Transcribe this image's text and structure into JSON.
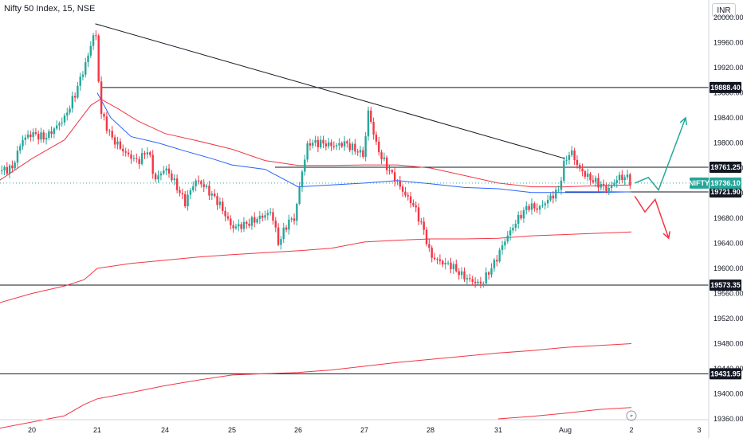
{
  "header": {
    "title": "Nifty 50 Index, 15, NSE",
    "currency": "INR"
  },
  "chart_data": {
    "type": "candlestick",
    "symbol": "NIFTY",
    "y_ticks": [
      "20000.00",
      "19960.00",
      "19920.00",
      "19880.00",
      "19840.00",
      "19800.00",
      "19760.00",
      "19720.00",
      "19680.00",
      "19640.00",
      "19600.00",
      "19560.00",
      "19520.00",
      "19480.00",
      "19440.00",
      "19400.00",
      "19360.00"
    ],
    "y_tick_values": [
      20000,
      19960,
      19920,
      19880,
      19840,
      19800,
      19760,
      19720,
      19680,
      19640,
      19600,
      19560,
      19520,
      19480,
      19440,
      19400,
      19360
    ],
    "ylim": [
      19355,
      20030
    ],
    "x_ticks": [
      {
        "label": "20",
        "day": 0
      },
      {
        "label": "21",
        "day": 1
      },
      {
        "label": "24",
        "day": 2
      },
      {
        "label": "25",
        "day": 3
      },
      {
        "label": "26",
        "day": 4
      },
      {
        "label": "27",
        "day": 5
      },
      {
        "label": "28",
        "day": 6
      },
      {
        "label": "31",
        "day": 7
      },
      {
        "label": "Aug",
        "day": 8
      },
      {
        "label": "2",
        "day": 9
      },
      {
        "label": "3",
        "day": 10
      }
    ],
    "current_price": {
      "symbol": "NIFTY",
      "value": 19736.1,
      "label": "19736.10",
      "color": "#26a69a"
    },
    "horizontal_levels": [
      {
        "value": 19888.4,
        "label": "19888.40",
        "start_day": 1.05
      },
      {
        "value": 19761.25,
        "label": "19761.25",
        "start_day": 3.65
      },
      {
        "value": 19721.9,
        "label": "19721.90",
        "start_day": 8.0
      },
      {
        "value": 19573.35,
        "label": "19573.35",
        "start_day": -0.5
      },
      {
        "value": 19431.95,
        "label": "19431.95",
        "start_day": -0.5
      }
    ],
    "trendline": {
      "from": {
        "day": 0.97,
        "value": 19990
      },
      "to": {
        "day": 8.0,
        "value": 19775
      }
    },
    "candle_waypoints": [
      [
        -0.5,
        19755
      ],
      [
        -0.3,
        19760
      ],
      [
        -0.15,
        19805
      ],
      [
        0.0,
        19815
      ],
      [
        0.2,
        19808
      ],
      [
        0.3,
        19818
      ],
      [
        0.5,
        19840
      ],
      [
        0.65,
        19875
      ],
      [
        0.85,
        19935
      ],
      [
        0.97,
        19985
      ],
      [
        1.05,
        19850
      ],
      [
        1.2,
        19810
      ],
      [
        1.4,
        19785
      ],
      [
        1.6,
        19770
      ],
      [
        1.75,
        19790
      ],
      [
        1.85,
        19740
      ],
      [
        2.0,
        19760
      ],
      [
        2.1,
        19745
      ],
      [
        2.3,
        19705
      ],
      [
        2.45,
        19740
      ],
      [
        2.55,
        19735
      ],
      [
        2.8,
        19705
      ],
      [
        3.0,
        19665
      ],
      [
        3.2,
        19670
      ],
      [
        3.4,
        19680
      ],
      [
        3.6,
        19690
      ],
      [
        3.7,
        19640
      ],
      [
        3.85,
        19675
      ],
      [
        3.95,
        19680
      ],
      [
        4.05,
        19750
      ],
      [
        4.15,
        19800
      ],
      [
        4.35,
        19800
      ],
      [
        4.55,
        19795
      ],
      [
        4.7,
        19800
      ],
      [
        4.85,
        19790
      ],
      [
        5.0,
        19780
      ],
      [
        5.05,
        19855
      ],
      [
        5.2,
        19790
      ],
      [
        5.35,
        19760
      ],
      [
        5.45,
        19745
      ],
      [
        5.6,
        19720
      ],
      [
        5.75,
        19700
      ],
      [
        5.9,
        19660
      ],
      [
        6.0,
        19620
      ],
      [
        6.15,
        19610
      ],
      [
        6.3,
        19605
      ],
      [
        6.45,
        19590
      ],
      [
        6.6,
        19580
      ],
      [
        6.75,
        19575
      ],
      [
        6.95,
        19610
      ],
      [
        7.1,
        19645
      ],
      [
        7.3,
        19680
      ],
      [
        7.45,
        19700
      ],
      [
        7.6,
        19695
      ],
      [
        7.75,
        19710
      ],
      [
        7.9,
        19725
      ],
      [
        8.0,
        19775
      ],
      [
        8.1,
        19785
      ],
      [
        8.2,
        19760
      ],
      [
        8.35,
        19745
      ],
      [
        8.5,
        19735
      ],
      [
        8.65,
        19725
      ],
      [
        8.8,
        19745
      ],
      [
        8.95,
        19745
      ],
      [
        9.0,
        19736
      ]
    ],
    "moving_averages": [
      {
        "name": "",
        "color": "#f23645",
        "points": [
          [
            -0.5,
            19740
          ],
          [
            0.0,
            19775
          ],
          [
            0.5,
            19805
          ],
          [
            0.9,
            19860
          ],
          [
            1.05,
            19870
          ],
          [
            1.3,
            19855
          ],
          [
            1.6,
            19835
          ],
          [
            2.0,
            19815
          ],
          [
            2.5,
            19803
          ],
          [
            3.0,
            19790
          ],
          [
            3.5,
            19772
          ],
          [
            4.0,
            19764
          ],
          [
            4.5,
            19764
          ],
          [
            5.0,
            19765
          ],
          [
            5.5,
            19765
          ],
          [
            6.0,
            19760
          ],
          [
            6.5,
            19748
          ],
          [
            7.0,
            19736
          ],
          [
            7.5,
            19730
          ],
          [
            8.0,
            19730
          ],
          [
            8.5,
            19732
          ],
          [
            9.0,
            19733
          ]
        ]
      },
      {
        "name": "",
        "color": "#2962ff",
        "points": [
          [
            1.0,
            19880
          ],
          [
            1.2,
            19840
          ],
          [
            1.5,
            19810
          ],
          [
            1.9,
            19800
          ],
          [
            2.3,
            19787
          ],
          [
            2.7,
            19775
          ],
          [
            3.0,
            19765
          ],
          [
            3.5,
            19758
          ],
          [
            4.0,
            19730
          ],
          [
            4.5,
            19733
          ],
          [
            5.0,
            19736
          ],
          [
            5.5,
            19740
          ],
          [
            6.0,
            19735
          ],
          [
            6.5,
            19729
          ],
          [
            7.0,
            19727
          ],
          [
            7.5,
            19721
          ],
          [
            8.0,
            19721
          ],
          [
            8.5,
            19721
          ],
          [
            9.0,
            19722
          ]
        ]
      },
      {
        "name": "",
        "color": "#f23645",
        "points": [
          [
            -0.5,
            19545
          ],
          [
            0.0,
            19560
          ],
          [
            0.5,
            19572
          ],
          [
            0.8,
            19582
          ],
          [
            1.0,
            19600
          ],
          [
            1.5,
            19608
          ],
          [
            2.0,
            19613
          ],
          [
            2.5,
            19618
          ],
          [
            3.0,
            19622
          ],
          [
            3.5,
            19625
          ],
          [
            4.0,
            19628
          ],
          [
            4.5,
            19632
          ],
          [
            5.0,
            19642
          ],
          [
            5.5,
            19645
          ],
          [
            6.0,
            19647
          ],
          [
            6.5,
            19647
          ],
          [
            7.0,
            19648
          ],
          [
            7.5,
            19652
          ],
          [
            8.0,
            19654
          ],
          [
            8.5,
            19656
          ],
          [
            9.0,
            19658
          ]
        ]
      },
      {
        "name": "",
        "color": "#f23645",
        "points": [
          [
            -0.5,
            19345
          ],
          [
            0.5,
            19365
          ],
          [
            0.8,
            19383
          ],
          [
            1.0,
            19392
          ],
          [
            1.5,
            19402
          ],
          [
            2.0,
            19413
          ],
          [
            2.5,
            19422
          ],
          [
            3.0,
            19430
          ],
          [
            3.5,
            19432
          ],
          [
            4.0,
            19434
          ],
          [
            4.5,
            19438
          ],
          [
            5.0,
            19444
          ],
          [
            5.5,
            19450
          ],
          [
            6.0,
            19455
          ],
          [
            6.5,
            19460
          ],
          [
            7.0,
            19465
          ],
          [
            7.5,
            19469
          ],
          [
            8.0,
            19474
          ],
          [
            8.5,
            19477
          ],
          [
            9.0,
            19480
          ]
        ]
      },
      {
        "name": "",
        "color": "#f23645",
        "points": [
          [
            7.0,
            19360
          ],
          [
            7.5,
            19364
          ],
          [
            8.0,
            19369
          ],
          [
            8.5,
            19375
          ],
          [
            9.0,
            19378
          ]
        ]
      }
    ],
    "projection_arrows": [
      {
        "color": "#26a69a",
        "points": [
          [
            9.05,
            19736
          ],
          [
            9.25,
            19745
          ],
          [
            9.4,
            19725
          ],
          [
            9.8,
            19840
          ]
        ]
      },
      {
        "color": "#f23645",
        "points": [
          [
            9.05,
            19715
          ],
          [
            9.2,
            19690
          ],
          [
            9.35,
            19710
          ],
          [
            9.55,
            19648
          ]
        ]
      }
    ],
    "grid": false,
    "watermark_icon": "lightning-icon"
  }
}
